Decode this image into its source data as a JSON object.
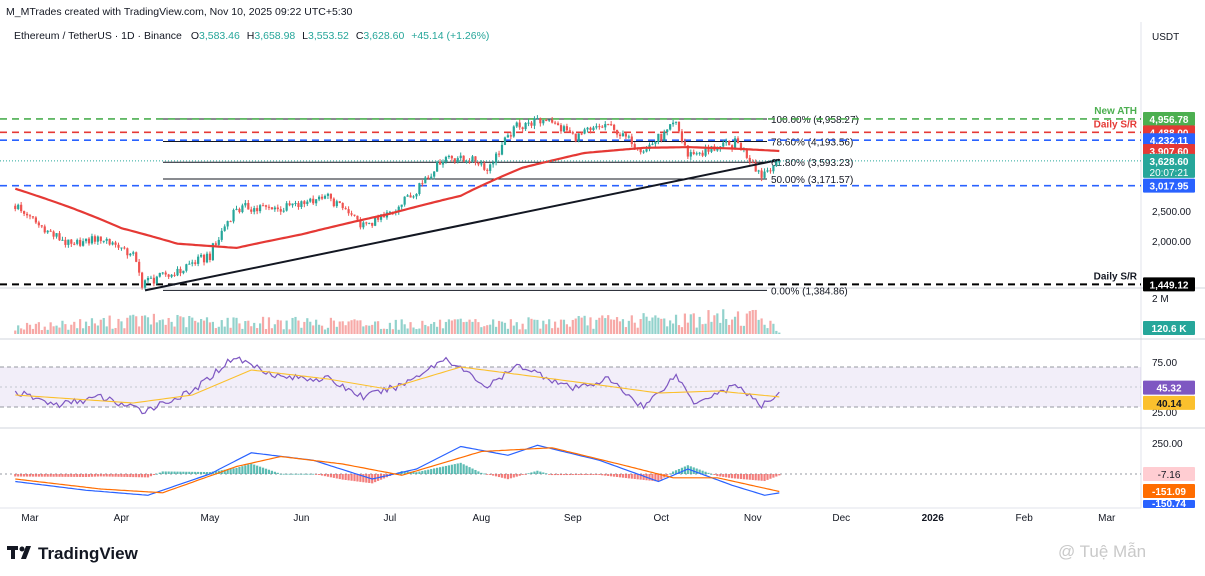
{
  "header": {
    "creator": "M_MTrades created with TradingView.com, Nov 10, 2025 09:22 UTC+5:30",
    "symbol": "Ethereum / TetherUS · 1D · Binance",
    "ohlc": {
      "o_label": "O",
      "o": "3,583.46",
      "h_label": "H",
      "h": "3,658.98",
      "l_label": "L",
      "l": "3,553.52",
      "c_label": "C",
      "c": "3,628.60",
      "change": "+45.14 (+1.26%)"
    }
  },
  "currency": "USDT",
  "colors": {
    "up": "#26a69a",
    "down": "#ef5350",
    "ma": "#e53935",
    "ath": "#4caf50",
    "blue": "#2962ff",
    "rsi_line": "#7e57c2",
    "rsi_ma": "#fbc02d",
    "macd_line": "#2962ff",
    "signal_line": "#ff6d00"
  },
  "chart_data": [
    {
      "type": "candlestick",
      "title": "Ethereum / TetherUS · 1D · Binance",
      "y_axis_ticks": [
        "2,000.00",
        "2,500.00"
      ],
      "ylim": [
        1300,
        5100
      ],
      "y_scale": "log",
      "x_axis_ticks": [
        "Mar",
        "Apr",
        "May",
        "Jun",
        "Jul",
        "Aug",
        "Sep",
        "Oct",
        "Nov",
        "Dec",
        "2026",
        "Feb",
        "Mar"
      ],
      "ohlc_close_path": [
        {
          "date": "2025-02-24",
          "close": 2600
        },
        {
          "date": "2025-03-05",
          "close": 2200
        },
        {
          "date": "2025-03-15",
          "close": 1920
        },
        {
          "date": "2025-03-25",
          "close": 2060
        },
        {
          "date": "2025-04-05",
          "close": 1800
        },
        {
          "date": "2025-04-08",
          "close": 1470
        },
        {
          "date": "2025-04-20",
          "close": 1590
        },
        {
          "date": "2025-05-01",
          "close": 1800
        },
        {
          "date": "2025-05-10",
          "close": 2550
        },
        {
          "date": "2025-05-25",
          "close": 2550
        },
        {
          "date": "2025-06-10",
          "close": 2780
        },
        {
          "date": "2025-06-22",
          "close": 2230
        },
        {
          "date": "2025-07-01",
          "close": 2450
        },
        {
          "date": "2025-07-10",
          "close": 2950
        },
        {
          "date": "2025-07-20",
          "close": 3750
        },
        {
          "date": "2025-07-31",
          "close": 3600
        },
        {
          "date": "2025-08-03",
          "close": 3400
        },
        {
          "date": "2025-08-13",
          "close": 4700
        },
        {
          "date": "2025-08-24",
          "close": 4950
        },
        {
          "date": "2025-09-01",
          "close": 4350
        },
        {
          "date": "2025-09-13",
          "close": 4700
        },
        {
          "date": "2025-09-25",
          "close": 3900
        },
        {
          "date": "2025-10-06",
          "close": 4750
        },
        {
          "date": "2025-10-10",
          "close": 3800
        },
        {
          "date": "2025-10-20",
          "close": 3980
        },
        {
          "date": "2025-10-27",
          "close": 4150
        },
        {
          "date": "2025-11-04",
          "close": 3250
        },
        {
          "date": "2025-11-10",
          "close": 3628.6
        }
      ],
      "series": [
        {
          "name": "",
          "type": "moving-average",
          "points": [
            {
              "date": "2025-02-24",
              "value": 2950
            },
            {
              "date": "2025-03-15",
              "value": 2560
            },
            {
              "date": "2025-04-01",
              "value": 2200
            },
            {
              "date": "2025-04-20",
              "value": 1960
            },
            {
              "date": "2025-05-10",
              "value": 1900
            },
            {
              "date": "2025-06-01",
              "value": 2100
            },
            {
              "date": "2025-07-01",
              "value": 2450
            },
            {
              "date": "2025-07-25",
              "value": 2800
            },
            {
              "date": "2025-08-15",
              "value": 3450
            },
            {
              "date": "2025-09-05",
              "value": 3850
            },
            {
              "date": "2025-09-25",
              "value": 4000
            },
            {
              "date": "2025-10-10",
              "value": 4020
            },
            {
              "date": "2025-10-25",
              "value": 3980
            },
            {
              "date": "2025-11-10",
              "value": 3907.6
            }
          ]
        }
      ],
      "trendline": {
        "from": {
          "date": "2025-04-09",
          "value": 1384.86
        },
        "to": {
          "date": "2025-11-10",
          "value": 3660
        }
      },
      "fib_levels": [
        {
          "label": "100.00% (4,958.27)",
          "value": 4958.27
        },
        {
          "label": "78.60% (4,193.56)",
          "value": 4193.56
        },
        {
          "label": "61.80% (3,593.23)",
          "value": 3593.23
        },
        {
          "label": "50.00% (3,171.57)",
          "value": 3171.57
        },
        {
          "label": "0.00% (1,384.86)",
          "value": 1384.86
        }
      ],
      "horizontal_levels": [
        {
          "label": "New ATH",
          "value": 4956.78,
          "price_label": "4,956.78",
          "style": "dashed",
          "color": "#4caf50"
        },
        {
          "label": "Daily S/R",
          "value": 4488.0,
          "price_label": "4,488.00",
          "style": "dashed",
          "color": "#e53935"
        },
        {
          "label": "",
          "value": 4232.11,
          "price_label": "4,232.11",
          "style": "dashed",
          "color": "#2962ff"
        },
        {
          "label": "",
          "value": 3017.95,
          "price_label": "3,017.95",
          "style": "dashed",
          "color": "#2962ff"
        },
        {
          "label": "Daily S/R",
          "value": 1449.12,
          "price_label": "1,449.12",
          "style": "dashed",
          "color": "#000000"
        }
      ],
      "price_labels": [
        {
          "text": "3,907.60",
          "value": 3907.6,
          "color": "#e53935"
        },
        {
          "text": "3,628.60",
          "value": 3628.6,
          "color": "#26a69a",
          "countdown": "20:07:21"
        }
      ]
    },
    {
      "type": "bar",
      "title": "",
      "y_axis_ticks": [
        "2 M"
      ],
      "last_value": "120.6 K",
      "volume_profile": [
        {
          "date": "2025-03-01",
          "value": 0.7
        },
        {
          "date": "2025-04-07",
          "value": 1.3
        },
        {
          "date": "2025-05-08",
          "value": 1.1
        },
        {
          "date": "2025-07-15",
          "value": 0.9
        },
        {
          "date": "2025-08-15",
          "value": 1.0
        },
        {
          "date": "2025-10-10",
          "value": 1.4
        },
        {
          "date": "2025-11-04",
          "value": 1.7
        },
        {
          "date": "2025-11-10",
          "value": 0.12
        }
      ]
    },
    {
      "type": "line",
      "title": "",
      "y_axis_ticks": [
        "75.00",
        "25.00"
      ],
      "ylim": [
        20,
        85
      ],
      "band": [
        30,
        70
      ],
      "series": [
        {
          "name": "",
          "last_value": "45.32",
          "points": [
            {
              "date": "2025-02-24",
              "value": 45
            },
            {
              "date": "2025-03-10",
              "value": 32
            },
            {
              "date": "2025-03-25",
              "value": 40
            },
            {
              "date": "2025-04-08",
              "value": 26
            },
            {
              "date": "2025-04-25",
              "value": 45
            },
            {
              "date": "2025-05-09",
              "value": 80
            },
            {
              "date": "2025-05-25",
              "value": 60
            },
            {
              "date": "2025-06-10",
              "value": 58
            },
            {
              "date": "2025-06-22",
              "value": 40
            },
            {
              "date": "2025-07-05",
              "value": 52
            },
            {
              "date": "2025-07-20",
              "value": 79
            },
            {
              "date": "2025-08-03",
              "value": 50
            },
            {
              "date": "2025-08-14",
              "value": 72
            },
            {
              "date": "2025-09-01",
              "value": 48
            },
            {
              "date": "2025-09-13",
              "value": 58
            },
            {
              "date": "2025-09-25",
              "value": 30
            },
            {
              "date": "2025-10-06",
              "value": 62
            },
            {
              "date": "2025-10-12",
              "value": 35
            },
            {
              "date": "2025-10-27",
              "value": 52
            },
            {
              "date": "2025-11-04",
              "value": 30
            },
            {
              "date": "2025-11-10",
              "value": 45.32
            }
          ]
        },
        {
          "name": "",
          "last_value": "40.14",
          "points": [
            {
              "date": "2025-02-24",
              "value": 42
            },
            {
              "date": "2025-04-05",
              "value": 34
            },
            {
              "date": "2025-04-25",
              "value": 42
            },
            {
              "date": "2025-05-15",
              "value": 67
            },
            {
              "date": "2025-06-10",
              "value": 58
            },
            {
              "date": "2025-06-30",
              "value": 48
            },
            {
              "date": "2025-07-25",
              "value": 70
            },
            {
              "date": "2025-08-15",
              "value": 62
            },
            {
              "date": "2025-09-10",
              "value": 52
            },
            {
              "date": "2025-09-30",
              "value": 44
            },
            {
              "date": "2025-10-20",
              "value": 46
            },
            {
              "date": "2025-11-10",
              "value": 40.14
            }
          ]
        }
      ]
    },
    {
      "type": "line",
      "title": "",
      "y_axis_ticks": [
        "250.00"
      ],
      "series": [
        {
          "name": "",
          "last_value": "-151.09",
          "points": [
            {
              "date": "2025-02-24",
              "value": -60
            },
            {
              "date": "2025-03-20",
              "value": -130
            },
            {
              "date": "2025-04-10",
              "value": -170
            },
            {
              "date": "2025-05-01",
              "value": 0
            },
            {
              "date": "2025-05-15",
              "value": 170
            },
            {
              "date": "2025-06-05",
              "value": 110
            },
            {
              "date": "2025-06-25",
              "value": -40
            },
            {
              "date": "2025-07-10",
              "value": 40
            },
            {
              "date": "2025-07-25",
              "value": 220
            },
            {
              "date": "2025-08-10",
              "value": 150
            },
            {
              "date": "2025-08-20",
              "value": 230
            },
            {
              "date": "2025-09-10",
              "value": 110
            },
            {
              "date": "2025-09-30",
              "value": -60
            },
            {
              "date": "2025-10-10",
              "value": 40
            },
            {
              "date": "2025-10-25",
              "value": -90
            },
            {
              "date": "2025-11-05",
              "value": -170
            },
            {
              "date": "2025-11-10",
              "value": -151.09
            }
          ]
        },
        {
          "name": "",
          "points": [
            {
              "date": "2025-02-24",
              "value": -40
            },
            {
              "date": "2025-03-25",
              "value": -120
            },
            {
              "date": "2025-04-15",
              "value": -150
            },
            {
              "date": "2025-05-10",
              "value": 60
            },
            {
              "date": "2025-05-25",
              "value": 140
            },
            {
              "date": "2025-06-15",
              "value": 80
            },
            {
              "date": "2025-07-05",
              "value": -10
            },
            {
              "date": "2025-08-01",
              "value": 180
            },
            {
              "date": "2025-08-25",
              "value": 210
            },
            {
              "date": "2025-09-20",
              "value": 60
            },
            {
              "date": "2025-10-05",
              "value": -30
            },
            {
              "date": "2025-10-20",
              "value": -30
            },
            {
              "date": "2025-11-10",
              "value": -140
            }
          ]
        }
      ],
      "histogram_last": "-7.16",
      "hidden_label": "-150.74"
    }
  ],
  "footer": {
    "brand": "TradingView",
    "watermark": "@ Tuệ Mẫn"
  }
}
